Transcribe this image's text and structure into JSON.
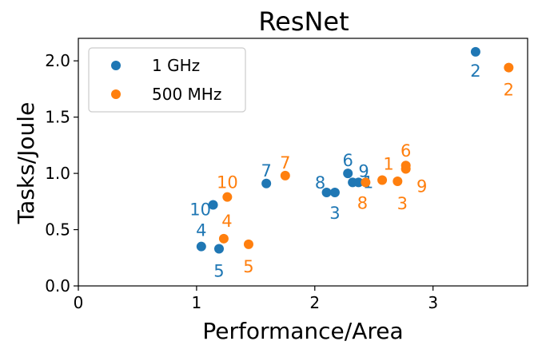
{
  "chart_data": {
    "type": "scatter",
    "title": "ResNet",
    "xlabel": "Performance/Area",
    "ylabel": "Tasks/Joule",
    "xlim": [
      0,
      3.8
    ],
    "ylim": [
      0,
      2.2
    ],
    "xticks": [
      0,
      1,
      2,
      3
    ],
    "xtick_labels": [
      "0",
      "1",
      "2",
      "3"
    ],
    "yticks": [
      0.0,
      0.5,
      1.0,
      1.5,
      2.0
    ],
    "ytick_labels": [
      "0.0",
      "0.5",
      "1.0",
      "1.5",
      "2.0"
    ],
    "grid": false,
    "legend_position": "top-left",
    "series": [
      {
        "name": "1 GHz",
        "color": "#1f77b4",
        "points": [
          {
            "label": "1",
            "x": 2.37,
            "y": 0.92
          },
          {
            "label": "2",
            "x": 3.36,
            "y": 2.08
          },
          {
            "label": "3",
            "x": 2.17,
            "y": 0.83
          },
          {
            "label": "4",
            "x": 1.04,
            "y": 0.35
          },
          {
            "label": "5",
            "x": 1.19,
            "y": 0.33
          },
          {
            "label": "6",
            "x": 2.28,
            "y": 1.0
          },
          {
            "label": "7",
            "x": 1.59,
            "y": 0.91
          },
          {
            "label": "8",
            "x": 2.1,
            "y": 0.83
          },
          {
            "label": "9",
            "x": 2.32,
            "y": 0.92
          },
          {
            "label": "10",
            "x": 1.14,
            "y": 0.72
          }
        ]
      },
      {
        "name": "500 MHz",
        "color": "#ff7f0e",
        "points": [
          {
            "label": "1",
            "x": 2.57,
            "y": 0.94
          },
          {
            "label": "2",
            "x": 3.64,
            "y": 1.94
          },
          {
            "label": "3",
            "x": 2.7,
            "y": 0.93
          },
          {
            "label": "4",
            "x": 1.23,
            "y": 0.42
          },
          {
            "label": "5",
            "x": 1.44,
            "y": 0.37
          },
          {
            "label": "6",
            "x": 2.77,
            "y": 1.07
          },
          {
            "label": "7",
            "x": 1.75,
            "y": 0.98
          },
          {
            "label": "8",
            "x": 2.43,
            "y": 0.92
          },
          {
            "label": "9",
            "x": 2.77,
            "y": 1.04
          },
          {
            "label": "10",
            "x": 1.26,
            "y": 0.79
          }
        ]
      }
    ]
  }
}
